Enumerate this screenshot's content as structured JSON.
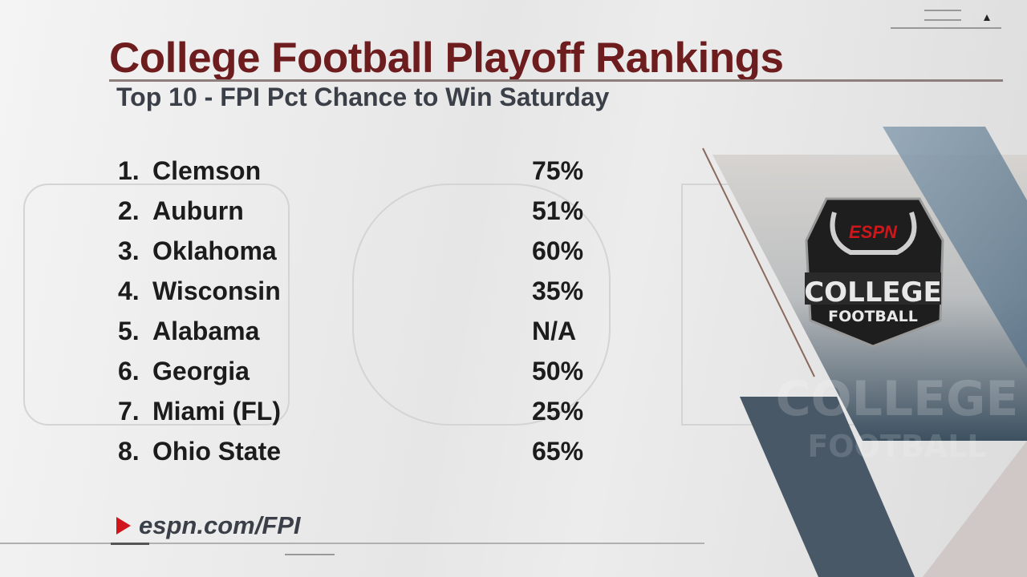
{
  "header": {
    "title": "College Football Playoff Rankings",
    "subtitle": "Top 10 - FPI Pct Chance to Win Saturday"
  },
  "rankings": [
    {
      "rank": "1.",
      "team": "Clemson",
      "pct": "75%"
    },
    {
      "rank": "2.",
      "team": "Auburn",
      "pct": "51%"
    },
    {
      "rank": "3.",
      "team": "Oklahoma",
      "pct": "60%"
    },
    {
      "rank": "4.",
      "team": "Wisconsin",
      "pct": "35%"
    },
    {
      "rank": "5.",
      "team": "Alabama",
      "pct": "N/A"
    },
    {
      "rank": "6.",
      "team": "Georgia",
      "pct": "50%"
    },
    {
      "rank": "7.",
      "team": "Miami (FL)",
      "pct": "25%"
    },
    {
      "rank": "8.",
      "team": "Ohio State",
      "pct": "65%"
    }
  ],
  "footer": {
    "url": "espn.com/FPI",
    "icon": "play-triangle-icon"
  },
  "logo": {
    "brand": "ESPN",
    "line1": "COLLEGE",
    "line2": "FOOTBALL"
  },
  "colors": {
    "title": "#6e1d1f",
    "accent_red": "#d0161b",
    "panel_blue": "#3f5060"
  }
}
